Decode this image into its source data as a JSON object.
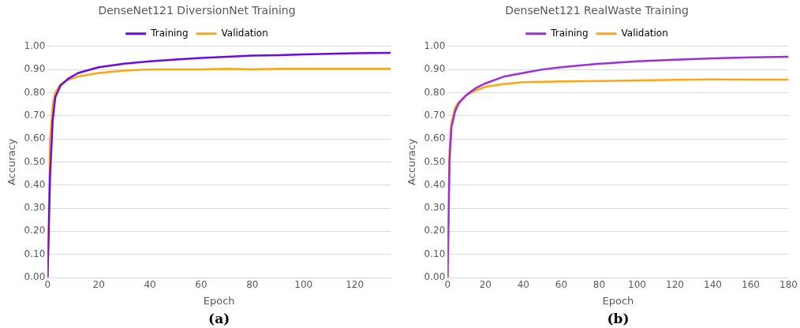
{
  "chart_data": [
    {
      "type": "line",
      "title": "DenseNet121 DiversionNet Training",
      "xlabel": "Epoch",
      "ylabel": "Accuracy",
      "annotations": [
        "(a)"
      ],
      "legend": "top",
      "grid": "y",
      "marker": "none",
      "xlim": [
        0,
        134
      ],
      "xticks": [
        0,
        20,
        40,
        60,
        80,
        100,
        120
      ],
      "ylim": [
        0,
        1
      ],
      "yticks": [
        {
          "value": 0,
          "label": "0.00"
        },
        {
          "value": 0.1,
          "label": "0.10"
        },
        {
          "value": 0.2,
          "label": "0.20"
        },
        {
          "value": 0.3,
          "label": "0.30"
        },
        {
          "value": 0.4,
          "label": "0.40"
        },
        {
          "value": 0.5,
          "label": "0.50"
        },
        {
          "value": 0.6,
          "label": "0.60"
        },
        {
          "value": 0.7,
          "label": "0.70"
        },
        {
          "value": 0.8,
          "label": "0.80"
        },
        {
          "value": 0.9,
          "label": "0.90"
        },
        {
          "value": 1,
          "label": "1.00"
        }
      ],
      "series": [
        {
          "name": "Training",
          "color": "#6a0ae6",
          "x": [
            0,
            1,
            2,
            3,
            5,
            8,
            12,
            20,
            30,
            40,
            50,
            60,
            70,
            80,
            90,
            100,
            110,
            120,
            134
          ],
          "values": [
            0,
            0.45,
            0.68,
            0.78,
            0.83,
            0.86,
            0.885,
            0.91,
            0.925,
            0.935,
            0.943,
            0.95,
            0.955,
            0.96,
            0.962,
            0.965,
            0.968,
            0.97,
            0.972
          ]
        },
        {
          "name": "Validation",
          "color": "#ffa514",
          "x": [
            0,
            1,
            2,
            3,
            5,
            8,
            12,
            20,
            30,
            40,
            50,
            60,
            70,
            80,
            90,
            100,
            134
          ],
          "values": [
            0,
            0.6,
            0.75,
            0.8,
            0.835,
            0.855,
            0.87,
            0.885,
            0.895,
            0.9,
            0.9,
            0.9,
            0.903,
            0.9,
            0.903,
            0.903,
            0.903
          ]
        }
      ]
    },
    {
      "type": "line",
      "title": "DenseNet121 RealWaste Training",
      "xlabel": "Epoch",
      "ylabel": "Accuracy",
      "annotations": [
        "(b)"
      ],
      "legend": "top",
      "grid": "y",
      "marker": "none",
      "xlim": [
        0,
        180
      ],
      "xticks": [
        0,
        20,
        40,
        60,
        80,
        100,
        120,
        140,
        160,
        180
      ],
      "ylim": [
        0,
        1
      ],
      "yticks": [
        {
          "value": 0,
          "label": "0.00"
        },
        {
          "value": 0.1,
          "label": "0.10"
        },
        {
          "value": 0.2,
          "label": "0.20"
        },
        {
          "value": 0.3,
          "label": "0.30"
        },
        {
          "value": 0.4,
          "label": "0.40"
        },
        {
          "value": 0.5,
          "label": "0.50"
        },
        {
          "value": 0.6,
          "label": "0.60"
        },
        {
          "value": 0.7,
          "label": "0.70"
        },
        {
          "value": 0.8,
          "label": "0.80"
        },
        {
          "value": 0.9,
          "label": "0.90"
        },
        {
          "value": 1,
          "label": "1.00"
        }
      ],
      "series": [
        {
          "name": "Training",
          "color": "#9b30d9",
          "x": [
            0,
            1,
            2,
            4,
            6,
            10,
            15,
            20,
            30,
            40,
            50,
            60,
            80,
            100,
            120,
            140,
            160,
            180
          ],
          "values": [
            0,
            0.5,
            0.65,
            0.72,
            0.755,
            0.79,
            0.82,
            0.84,
            0.87,
            0.885,
            0.9,
            0.91,
            0.925,
            0.935,
            0.942,
            0.948,
            0.952,
            0.955
          ]
        },
        {
          "name": "Validation",
          "color": "#ffa514",
          "x": [
            0,
            1,
            2,
            4,
            6,
            10,
            15,
            20,
            30,
            40,
            60,
            80,
            100,
            120,
            140,
            160,
            180
          ],
          "values": [
            0,
            0.55,
            0.67,
            0.735,
            0.76,
            0.79,
            0.81,
            0.825,
            0.837,
            0.845,
            0.848,
            0.85,
            0.853,
            0.855,
            0.857,
            0.856,
            0.856
          ]
        }
      ]
    }
  ]
}
